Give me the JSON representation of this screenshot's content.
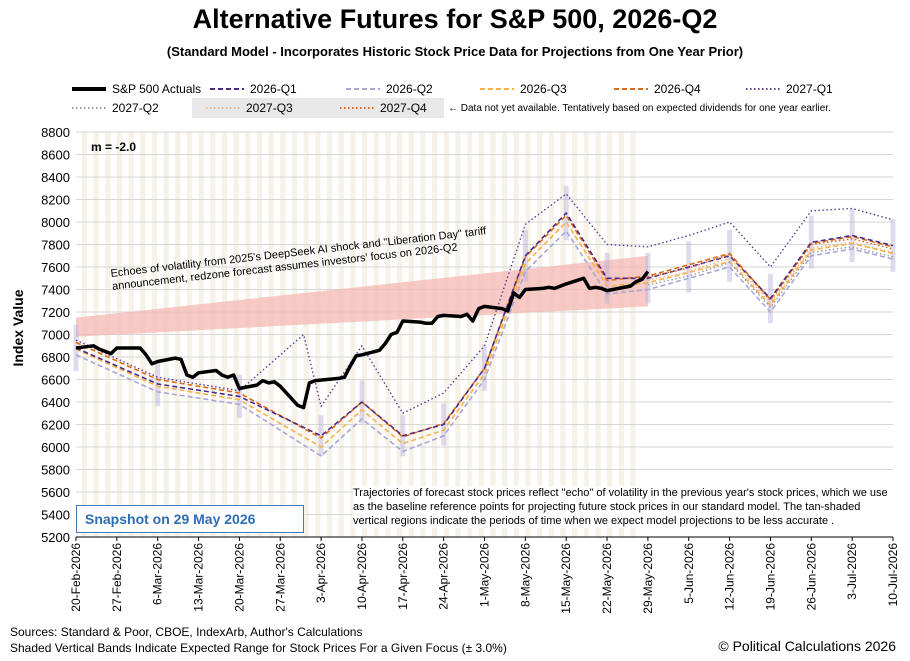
{
  "title": "Alternative Futures for S&P 500, 2026-Q2",
  "subtitle": "(Standard Model - Incorporates Historic Stock Price Data for Projections from One Year Prior)",
  "legend_note": "← Data not yet available.  Tentatively based on expected dividends for one year earlier.",
  "m_label": "m = -2.0",
  "echo_annotation": "Echoes of volatility from 2025's DeepSeek AI shock and \"Liberation Day\" tariff announcement, redzone forecast assumes investors' focus on 2026-Q2",
  "trajectory_note": "Trajectories of forecast stock prices reflect \"echo\" of volatility in  the previous year's stock prices, which we use as the baseline reference points for projecting future stock prices in our standard model.   The tan-shaded vertical regions indicate the periods of time when we expect model projections to be less accurate .",
  "snapshot": "Snapshot  on 29 May 2026",
  "sources_line1": "Sources: Standard & Poor, CBOE, IndexArb, Author's Calculations",
  "sources_line2": "Shaded Vertical Bands Indicate Expected Range for Stock Prices For a Given Focus (± 3.0%)",
  "copyright": "© Political Calculations 2026",
  "colors": {
    "actuals": "#000000",
    "q1_2026": "#4b2a8c",
    "q2_2026": "#a8a6d6",
    "q3_2026": "#f5b14a",
    "q4_2026": "#e06a10",
    "q1_2027": "#5b3d9a",
    "q2_2027": "#9a9a9a",
    "q3_2027": "#f7b27a",
    "q4_2027": "#d86428",
    "redzone": "#f4b8b4",
    "tan": "#efe7d6"
  },
  "chart_data": {
    "type": "line",
    "title": "Alternative Futures for S&P 500, 2026-Q2",
    "ylabel": "Index Value",
    "ylim": [
      5200,
      8800
    ],
    "yticks": [
      "5200",
      "5400",
      "5600",
      "5800",
      "6000",
      "6200",
      "6400",
      "6600",
      "6800",
      "7000",
      "7200",
      "7400",
      "7600",
      "7800",
      "8000",
      "8200",
      "8400",
      "8600",
      "8800"
    ],
    "x_range": [
      "2026-02-20",
      "2026-07-10"
    ],
    "xticks": [
      "20-Feb-2026",
      "27-Feb-2026",
      "6-Mar-2026",
      "13-Mar-2026",
      "20-Mar-2026",
      "27-Mar-2026",
      "3-Apr-2026",
      "10-Apr-2026",
      "17-Apr-2026",
      "24-Apr-2026",
      "1-May-2026",
      "8-May-2026",
      "15-May-2026",
      "22-May-2026",
      "29-May-2026",
      "5-Jun-2026",
      "12-Jun-2026",
      "19-Jun-2026",
      "26-Jun-2026",
      "3-Jul-2026",
      "10-Jul-2026"
    ],
    "grid": true,
    "legend_position": "top",
    "redzone": {
      "x": [
        "2026-02-20",
        "2026-05-29"
      ],
      "lower": [
        6980,
        7250
      ],
      "upper": [
        7150,
        7700
      ]
    },
    "series": [
      {
        "name": "S&P 500 Actuals",
        "key": "actuals",
        "x": [
          "2026-02-20",
          "2026-02-23",
          "2026-02-24",
          "2026-02-25",
          "2026-02-26",
          "2026-02-27",
          "2026-03-02",
          "2026-03-03",
          "2026-03-04",
          "2026-03-05",
          "2026-03-06",
          "2026-03-09",
          "2026-03-10",
          "2026-03-11",
          "2026-03-12",
          "2026-03-13",
          "2026-03-16",
          "2026-03-17",
          "2026-03-18",
          "2026-03-19",
          "2026-03-20",
          "2026-03-23",
          "2026-03-24",
          "2026-03-25",
          "2026-03-26",
          "2026-03-27",
          "2026-03-30",
          "2026-03-31",
          "2026-04-01",
          "2026-04-02",
          "2026-04-06",
          "2026-04-07",
          "2026-04-08",
          "2026-04-09",
          "2026-04-10",
          "2026-04-13",
          "2026-04-14",
          "2026-04-15",
          "2026-04-16",
          "2026-04-17",
          "2026-04-20",
          "2026-04-21",
          "2026-04-22",
          "2026-04-23",
          "2026-04-24",
          "2026-04-27",
          "2026-04-28",
          "2026-04-29",
          "2026-04-30",
          "2026-05-01",
          "2026-05-04",
          "2026-05-05",
          "2026-05-06",
          "2026-05-07",
          "2026-05-08",
          "2026-05-11",
          "2026-05-12",
          "2026-05-13",
          "2026-05-14",
          "2026-05-15",
          "2026-05-18",
          "2026-05-19",
          "2026-05-20",
          "2026-05-21",
          "2026-05-22",
          "2026-05-26",
          "2026-05-27",
          "2026-05-28",
          "2026-05-29"
        ],
        "values": [
          6880,
          6900,
          6870,
          6850,
          6830,
          6880,
          6880,
          6880,
          6820,
          6740,
          6760,
          6790,
          6780,
          6640,
          6620,
          6660,
          6680,
          6640,
          6620,
          6640,
          6520,
          6550,
          6590,
          6570,
          6580,
          6540,
          6370,
          6350,
          6570,
          6590,
          6610,
          6620,
          6720,
          6810,
          6820,
          6860,
          6920,
          7000,
          7020,
          7120,
          7110,
          7100,
          7100,
          7160,
          7170,
          7160,
          7180,
          7120,
          7230,
          7250,
          7230,
          7210,
          7370,
          7330,
          7400,
          7410,
          7420,
          7410,
          7430,
          7450,
          7500,
          7410,
          7420,
          7410,
          7390,
          7430,
          7470,
          7490,
          7560
        ]
      },
      {
        "name": "2026-Q1",
        "key": "q1_2026",
        "x": [
          "2026-02-20",
          "2026-03-06",
          "2026-03-20",
          "2026-04-03",
          "2026-04-10",
          "2026-04-17",
          "2026-04-24",
          "2026-05-01",
          "2026-05-08",
          "2026-05-15",
          "2026-05-22",
          "2026-05-29",
          "2026-06-05",
          "2026-06-12",
          "2026-06-19",
          "2026-06-26",
          "2026-07-03",
          "2026-07-10"
        ],
        "values": [
          6880,
          6560,
          6450,
          6100,
          6400,
          6100,
          6200,
          6700,
          7700,
          8080,
          7500,
          7500,
          7600,
          7700,
          7320,
          7820,
          7880,
          7790
        ]
      },
      {
        "name": "2026-Q2",
        "key": "q2_2026",
        "x": [
          "2026-02-20",
          "2026-03-06",
          "2026-03-20",
          "2026-04-03",
          "2026-04-10",
          "2026-04-17",
          "2026-04-24",
          "2026-05-01",
          "2026-05-08",
          "2026-05-15",
          "2026-05-22",
          "2026-05-29",
          "2026-06-05",
          "2026-06-12",
          "2026-06-19",
          "2026-06-26",
          "2026-07-03",
          "2026-07-10"
        ],
        "values": [
          6820,
          6490,
          6380,
          5920,
          6250,
          5960,
          6100,
          6600,
          7560,
          7920,
          7360,
          7400,
          7500,
          7600,
          7200,
          7700,
          7760,
          7670
        ]
      },
      {
        "name": "2026-Q3",
        "key": "q3_2026",
        "x": [
          "2026-02-20",
          "2026-03-06",
          "2026-03-20",
          "2026-04-03",
          "2026-04-10",
          "2026-04-17",
          "2026-04-24",
          "2026-05-01",
          "2026-05-08",
          "2026-05-15",
          "2026-05-22",
          "2026-05-29",
          "2026-06-05",
          "2026-06-12",
          "2026-06-19",
          "2026-06-26",
          "2026-07-03",
          "2026-07-10"
        ],
        "values": [
          6870,
          6540,
          6420,
          6000,
          6330,
          6030,
          6150,
          6650,
          7630,
          8000,
          7430,
          7460,
          7550,
          7650,
          7260,
          7750,
          7810,
          7720
        ]
      },
      {
        "name": "2026-Q4",
        "key": "q4_2026",
        "x": [
          "2026-02-20",
          "2026-03-06",
          "2026-03-20",
          "2026-04-03",
          "2026-04-10",
          "2026-04-17",
          "2026-04-24",
          "2026-05-01",
          "2026-05-08",
          "2026-05-15",
          "2026-05-22",
          "2026-05-29",
          "2026-06-05",
          "2026-06-12",
          "2026-06-19",
          "2026-06-26",
          "2026-07-03",
          "2026-07-10"
        ],
        "values": [
          6930,
          6600,
          6480,
          6080,
          6400,
          6090,
          6210,
          6700,
          7690,
          8060,
          7480,
          7520,
          7620,
          7720,
          7310,
          7810,
          7870,
          7780
        ]
      },
      {
        "name": "2027-Q1",
        "key": "q1_2027",
        "x": [
          "2026-02-20",
          "2026-03-06",
          "2026-03-20",
          "2026-03-31",
          "2026-04-03",
          "2026-04-10",
          "2026-04-17",
          "2026-04-24",
          "2026-05-01",
          "2026-05-08",
          "2026-05-15",
          "2026-05-22",
          "2026-05-29",
          "2026-06-05",
          "2026-06-12",
          "2026-06-19",
          "2026-06-26",
          "2026-07-03",
          "2026-07-10"
        ],
        "values": [
          6950,
          6620,
          6500,
          7000,
          6360,
          6900,
          6300,
          6480,
          6900,
          7980,
          8250,
          7800,
          7780,
          7880,
          8000,
          7600,
          8100,
          8120,
          8020
        ]
      },
      {
        "name": "2027-Q2",
        "key": "q2_2027",
        "x": [
          "2026-05-29",
          "2026-06-05",
          "2026-06-12",
          "2026-06-19",
          "2026-06-26",
          "2026-07-03",
          "2026-07-10"
        ],
        "values": [
          7440,
          7520,
          7640,
          7240,
          7730,
          7780,
          7690
        ]
      },
      {
        "name": "2027-Q3",
        "key": "q3_2027",
        "x": [
          "2026-05-29",
          "2026-06-05",
          "2026-06-12",
          "2026-06-19",
          "2026-06-26",
          "2026-07-03",
          "2026-07-10"
        ],
        "values": [
          7480,
          7560,
          7680,
          7280,
          7770,
          7820,
          7730
        ]
      },
      {
        "name": "2027-Q4",
        "key": "q4_2027",
        "x": [
          "2026-05-29",
          "2026-06-05",
          "2026-06-12",
          "2026-06-19",
          "2026-06-26",
          "2026-07-03",
          "2026-07-10"
        ],
        "values": [
          7510,
          7590,
          7710,
          7300,
          7800,
          7850,
          7760
        ]
      }
    ]
  }
}
